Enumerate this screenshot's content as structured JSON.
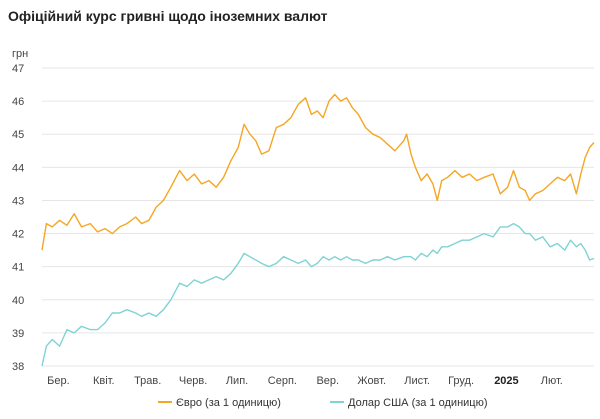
{
  "chart_data": {
    "type": "line",
    "title": "Офіційний курс гривні щодо іноземних валют",
    "ylabel": "грн",
    "xlabel": "",
    "ylim": [
      38,
      47
    ],
    "yticks": [
      38,
      39,
      40,
      41,
      42,
      43,
      44,
      45,
      46,
      47
    ],
    "grid": "horizontal",
    "legend_position": "bottom",
    "xticks": [
      {
        "label": "Бер.",
        "date": "2024-03-01",
        "bold": false
      },
      {
        "label": "Квіт.",
        "date": "2024-04-01",
        "bold": false
      },
      {
        "label": "Трав.",
        "date": "2024-05-01",
        "bold": false
      },
      {
        "label": "Черв.",
        "date": "2024-06-01",
        "bold": false
      },
      {
        "label": "Лип.",
        "date": "2024-07-01",
        "bold": false
      },
      {
        "label": "Серп.",
        "date": "2024-08-01",
        "bold": false
      },
      {
        "label": "Вер.",
        "date": "2024-09-01",
        "bold": false
      },
      {
        "label": "Жовт.",
        "date": "2024-10-01",
        "bold": false
      },
      {
        "label": "Лист.",
        "date": "2024-11-01",
        "bold": false
      },
      {
        "label": "Груд.",
        "date": "2024-12-01",
        "bold": false
      },
      {
        "label": "2025",
        "date": "2025-01-01",
        "bold": true
      },
      {
        "label": "Лют.",
        "date": "2025-02-01",
        "bold": false
      }
    ],
    "series": [
      {
        "name": "Євро (за 1 одиницю)",
        "color": "#f5a623",
        "points": [
          [
            "2024-02-27",
            41.5
          ],
          [
            "2024-03-01",
            42.3
          ],
          [
            "2024-03-05",
            42.2
          ],
          [
            "2024-03-10",
            42.4
          ],
          [
            "2024-03-15",
            42.25
          ],
          [
            "2024-03-20",
            42.6
          ],
          [
            "2024-03-25",
            42.2
          ],
          [
            "2024-03-31",
            42.3
          ],
          [
            "2024-04-05",
            42.05
          ],
          [
            "2024-04-10",
            42.15
          ],
          [
            "2024-04-15",
            42.0
          ],
          [
            "2024-04-20",
            42.2
          ],
          [
            "2024-04-25",
            42.3
          ],
          [
            "2024-05-01",
            42.5
          ],
          [
            "2024-05-05",
            42.3
          ],
          [
            "2024-05-10",
            42.4
          ],
          [
            "2024-05-15",
            42.8
          ],
          [
            "2024-05-20",
            43.0
          ],
          [
            "2024-05-25",
            43.4
          ],
          [
            "2024-05-31",
            43.9
          ],
          [
            "2024-06-05",
            43.6
          ],
          [
            "2024-06-10",
            43.8
          ],
          [
            "2024-06-15",
            43.5
          ],
          [
            "2024-06-20",
            43.6
          ],
          [
            "2024-06-25",
            43.4
          ],
          [
            "2024-06-30",
            43.7
          ],
          [
            "2024-07-05",
            44.2
          ],
          [
            "2024-07-10",
            44.6
          ],
          [
            "2024-07-14",
            45.3
          ],
          [
            "2024-07-18",
            45.0
          ],
          [
            "2024-07-22",
            44.8
          ],
          [
            "2024-07-26",
            44.4
          ],
          [
            "2024-07-31",
            44.5
          ],
          [
            "2024-08-05",
            45.2
          ],
          [
            "2024-08-10",
            45.3
          ],
          [
            "2024-08-15",
            45.5
          ],
          [
            "2024-08-20",
            45.9
          ],
          [
            "2024-08-25",
            46.1
          ],
          [
            "2024-08-29",
            45.6
          ],
          [
            "2024-09-02",
            45.7
          ],
          [
            "2024-09-06",
            45.5
          ],
          [
            "2024-09-10",
            46.0
          ],
          [
            "2024-09-14",
            46.2
          ],
          [
            "2024-09-18",
            46.0
          ],
          [
            "2024-09-22",
            46.1
          ],
          [
            "2024-09-26",
            45.8
          ],
          [
            "2024-09-30",
            45.6
          ],
          [
            "2024-10-05",
            45.2
          ],
          [
            "2024-10-10",
            45.0
          ],
          [
            "2024-10-15",
            44.9
          ],
          [
            "2024-10-20",
            44.7
          ],
          [
            "2024-10-25",
            44.5
          ],
          [
            "2024-10-31",
            44.8
          ],
          [
            "2024-11-02",
            45.0
          ],
          [
            "2024-11-05",
            44.4
          ],
          [
            "2024-11-08",
            44.0
          ],
          [
            "2024-11-12",
            43.6
          ],
          [
            "2024-11-16",
            43.8
          ],
          [
            "2024-11-20",
            43.5
          ],
          [
            "2024-11-23",
            43.0
          ],
          [
            "2024-11-26",
            43.6
          ],
          [
            "2024-11-30",
            43.7
          ],
          [
            "2024-12-05",
            43.9
          ],
          [
            "2024-12-10",
            43.7
          ],
          [
            "2024-12-15",
            43.8
          ],
          [
            "2024-12-20",
            43.6
          ],
          [
            "2024-12-25",
            43.7
          ],
          [
            "2024-12-31",
            43.8
          ],
          [
            "2025-01-05",
            43.2
          ],
          [
            "2025-01-10",
            43.4
          ],
          [
            "2025-01-14",
            43.9
          ],
          [
            "2025-01-18",
            43.4
          ],
          [
            "2025-01-22",
            43.3
          ],
          [
            "2025-01-25",
            43.0
          ],
          [
            "2025-01-29",
            43.2
          ],
          [
            "2025-02-03",
            43.3
          ],
          [
            "2025-02-08",
            43.5
          ],
          [
            "2025-02-13",
            43.7
          ],
          [
            "2025-02-18",
            43.6
          ],
          [
            "2025-02-22",
            43.8
          ],
          [
            "2025-02-26",
            43.2
          ],
          [
            "2025-03-01",
            43.8
          ],
          [
            "2025-03-04",
            44.3
          ],
          [
            "2025-03-07",
            44.6
          ],
          [
            "2025-03-10",
            44.75
          ]
        ]
      },
      {
        "name": "Долар США (за 1 одиницю)",
        "color": "#7fd3d4",
        "points": [
          [
            "2024-02-27",
            38.0
          ],
          [
            "2024-03-01",
            38.6
          ],
          [
            "2024-03-05",
            38.8
          ],
          [
            "2024-03-10",
            38.6
          ],
          [
            "2024-03-15",
            39.1
          ],
          [
            "2024-03-20",
            39.0
          ],
          [
            "2024-03-25",
            39.2
          ],
          [
            "2024-03-31",
            39.1
          ],
          [
            "2024-04-05",
            39.1
          ],
          [
            "2024-04-10",
            39.3
          ],
          [
            "2024-04-15",
            39.6
          ],
          [
            "2024-04-20",
            39.6
          ],
          [
            "2024-04-25",
            39.7
          ],
          [
            "2024-05-01",
            39.6
          ],
          [
            "2024-05-05",
            39.5
          ],
          [
            "2024-05-10",
            39.6
          ],
          [
            "2024-05-15",
            39.5
          ],
          [
            "2024-05-20",
            39.7
          ],
          [
            "2024-05-25",
            40.0
          ],
          [
            "2024-05-31",
            40.5
          ],
          [
            "2024-06-05",
            40.4
          ],
          [
            "2024-06-10",
            40.6
          ],
          [
            "2024-06-15",
            40.5
          ],
          [
            "2024-06-20",
            40.6
          ],
          [
            "2024-06-25",
            40.7
          ],
          [
            "2024-06-30",
            40.6
          ],
          [
            "2024-07-05",
            40.8
          ],
          [
            "2024-07-10",
            41.1
          ],
          [
            "2024-07-14",
            41.4
          ],
          [
            "2024-07-18",
            41.3
          ],
          [
            "2024-07-22",
            41.2
          ],
          [
            "2024-07-26",
            41.1
          ],
          [
            "2024-07-31",
            41.0
          ],
          [
            "2024-08-05",
            41.1
          ],
          [
            "2024-08-10",
            41.3
          ],
          [
            "2024-08-15",
            41.2
          ],
          [
            "2024-08-20",
            41.1
          ],
          [
            "2024-08-25",
            41.2
          ],
          [
            "2024-08-29",
            41.0
          ],
          [
            "2024-09-02",
            41.1
          ],
          [
            "2024-09-06",
            41.3
          ],
          [
            "2024-09-10",
            41.2
          ],
          [
            "2024-09-14",
            41.3
          ],
          [
            "2024-09-18",
            41.2
          ],
          [
            "2024-09-22",
            41.3
          ],
          [
            "2024-09-26",
            41.2
          ],
          [
            "2024-09-30",
            41.2
          ],
          [
            "2024-10-05",
            41.1
          ],
          [
            "2024-10-10",
            41.2
          ],
          [
            "2024-10-15",
            41.2
          ],
          [
            "2024-10-20",
            41.3
          ],
          [
            "2024-10-25",
            41.2
          ],
          [
            "2024-10-31",
            41.3
          ],
          [
            "2024-11-02",
            41.3
          ],
          [
            "2024-11-05",
            41.3
          ],
          [
            "2024-11-08",
            41.2
          ],
          [
            "2024-11-12",
            41.4
          ],
          [
            "2024-11-16",
            41.3
          ],
          [
            "2024-11-20",
            41.5
          ],
          [
            "2024-11-23",
            41.4
          ],
          [
            "2024-11-26",
            41.6
          ],
          [
            "2024-11-30",
            41.6
          ],
          [
            "2024-12-05",
            41.7
          ],
          [
            "2024-12-10",
            41.8
          ],
          [
            "2024-12-15",
            41.8
          ],
          [
            "2024-12-20",
            41.9
          ],
          [
            "2024-12-25",
            42.0
          ],
          [
            "2024-12-31",
            41.9
          ],
          [
            "2025-01-05",
            42.2
          ],
          [
            "2025-01-10",
            42.2
          ],
          [
            "2025-01-14",
            42.3
          ],
          [
            "2025-01-18",
            42.2
          ],
          [
            "2025-01-22",
            42.0
          ],
          [
            "2025-01-25",
            42.0
          ],
          [
            "2025-01-29",
            41.8
          ],
          [
            "2025-02-03",
            41.9
          ],
          [
            "2025-02-08",
            41.6
          ],
          [
            "2025-02-13",
            41.7
          ],
          [
            "2025-02-18",
            41.5
          ],
          [
            "2025-02-22",
            41.8
          ],
          [
            "2025-02-26",
            41.6
          ],
          [
            "2025-03-01",
            41.7
          ],
          [
            "2025-03-04",
            41.5
          ],
          [
            "2025-03-07",
            41.2
          ],
          [
            "2025-03-10",
            41.25
          ]
        ]
      }
    ]
  }
}
